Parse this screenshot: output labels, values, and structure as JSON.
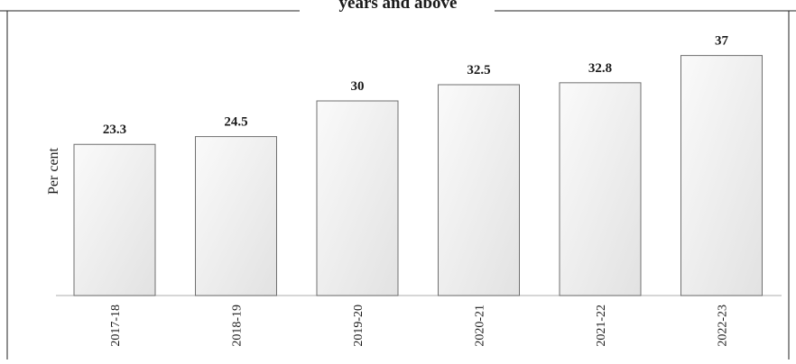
{
  "chart_data": {
    "type": "bar",
    "title": "years and above",
    "ylabel": "Per cent",
    "xlabel": "",
    "categories": [
      "2017-18",
      "2018-19",
      "2019-20",
      "2020-21",
      "2021-22",
      "2022-23"
    ],
    "values": [
      23.3,
      24.5,
      30,
      32.5,
      32.8,
      37
    ],
    "value_labels": [
      "23.3",
      "24.5",
      "30",
      "32.5",
      "32.8",
      "37"
    ],
    "ylim": [
      0,
      40
    ],
    "grid": false,
    "legend": "none",
    "colors": {
      "bar_fill_light": "#fafafa",
      "bar_fill_dark": "#e2e2e2",
      "bar_stroke": "#6f6f6f",
      "axis": "#bdbdbd",
      "frame": "#222222"
    }
  }
}
